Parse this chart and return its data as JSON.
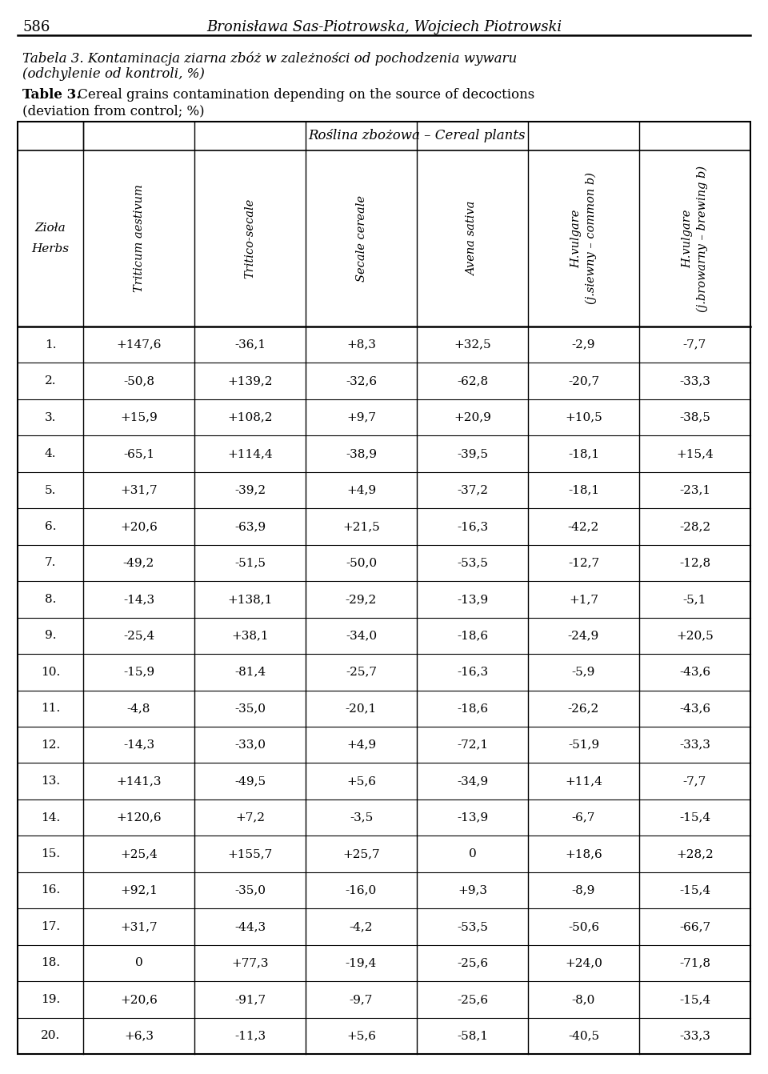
{
  "page_number": "586",
  "page_header": "Bronisława Sas-Piotrowska, Wojciech Piotrowski",
  "title_pl_italic": "Tabela 3. Kontaminacja ziarna zbóż w zależności od pochodzenia wywaru",
  "title_pl_italic2": "(odchylenie od kontroli, %)",
  "title_en_bold": "Table 3.",
  "title_en_rest": " Cereal grains contamination depending on the source of decoctions",
  "title_en_rest2": "(deviation from control; %)",
  "group_header": "Roślina zbożowa – Cereal plants",
  "col0_header_line1": "Zioła",
  "col0_header_line2": "Herbs",
  "col_headers": [
    "Triticum aestivum",
    "Tritico-secale",
    "Secale cereale",
    "Avena sativa",
    "H.vulgare\n(j.siewny – common b)",
    "H.vulgare\n(j.browarny – brewing b)"
  ],
  "row_labels": [
    "1.",
    "2.",
    "3.",
    "4.",
    "5.",
    "6.",
    "7.",
    "8.",
    "9.",
    "10.",
    "11.",
    "12.",
    "13.",
    "14.",
    "15.",
    "16.",
    "17.",
    "18.",
    "19.",
    "20."
  ],
  "table_data": [
    [
      "+147,6",
      "-36,1",
      "+8,3",
      "+32,5",
      "-2,9",
      "-7,7"
    ],
    [
      "-50,8",
      "+139,2",
      "-32,6",
      "-62,8",
      "-20,7",
      "-33,3"
    ],
    [
      "+15,9",
      "+108,2",
      "+9,7",
      "+20,9",
      "+10,5",
      "-38,5"
    ],
    [
      "-65,1",
      "+114,4",
      "-38,9",
      "-39,5",
      "-18,1",
      "+15,4"
    ],
    [
      "+31,7",
      "-39,2",
      "+4,9",
      "-37,2",
      "-18,1",
      "-23,1"
    ],
    [
      "+20,6",
      "-63,9",
      "+21,5",
      "-16,3",
      "-42,2",
      "-28,2"
    ],
    [
      "-49,2",
      "-51,5",
      "-50,0",
      "-53,5",
      "-12,7",
      "-12,8"
    ],
    [
      "-14,3",
      "+138,1",
      "-29,2",
      "-13,9",
      "+1,7",
      "-5,1"
    ],
    [
      "-25,4",
      "+38,1",
      "-34,0",
      "-18,6",
      "-24,9",
      "+20,5"
    ],
    [
      "-15,9",
      "-81,4",
      "-25,7",
      "-16,3",
      "-5,9",
      "-43,6"
    ],
    [
      "-4,8",
      "-35,0",
      "-20,1",
      "-18,6",
      "-26,2",
      "-43,6"
    ],
    [
      "-14,3",
      "-33,0",
      "+4,9",
      "-72,1",
      "-51,9",
      "-33,3"
    ],
    [
      "+141,3",
      "-49,5",
      "+5,6",
      "-34,9",
      "+11,4",
      "-7,7"
    ],
    [
      "+120,6",
      "+7,2",
      "-3,5",
      "-13,9",
      "-6,7",
      "-15,4"
    ],
    [
      "+25,4",
      "+155,7",
      "+25,7",
      "0",
      "+18,6",
      "+28,2"
    ],
    [
      "+92,1",
      "-35,0",
      "-16,0",
      "+9,3",
      "-8,9",
      "-15,4"
    ],
    [
      "+31,7",
      "-44,3",
      "-4,2",
      "-53,5",
      "-50,6",
      "-66,7"
    ],
    [
      "0",
      "+77,3",
      "-19,4",
      "-25,6",
      "+24,0",
      "-71,8"
    ],
    [
      "+20,6",
      "-91,7",
      "-9,7",
      "-25,6",
      "-8,0",
      "-15,4"
    ],
    [
      "+6,3",
      "-11,3",
      "+5,6",
      "-58,1",
      "-40,5",
      "-33,3"
    ]
  ],
  "bg_color": "#ffffff",
  "text_color": "#000000"
}
